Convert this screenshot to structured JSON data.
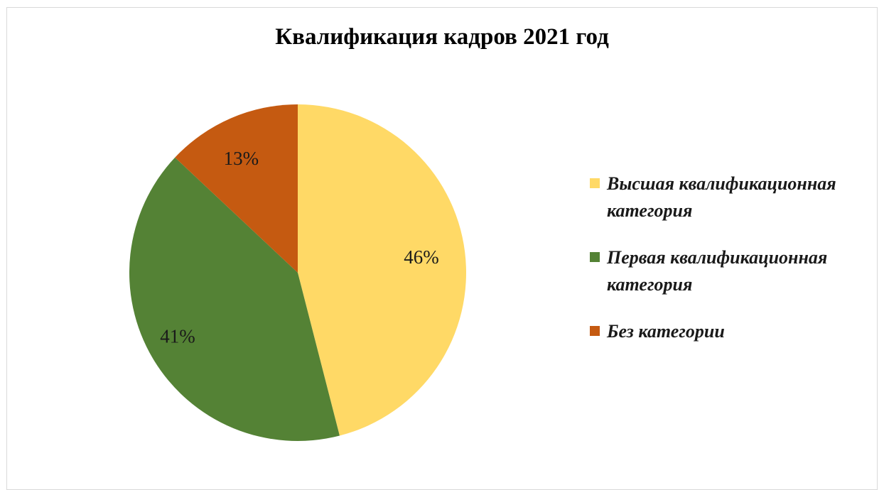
{
  "chart_data": {
    "type": "pie",
    "title": "Квалификация кадров 2021 год",
    "series": [
      {
        "name": "Высшая квалификационная категория",
        "value": 46,
        "label": "46%",
        "color": "#FFD966"
      },
      {
        "name": "Первая квалификационная категория",
        "value": 41,
        "label": "41%",
        "color": "#548235"
      },
      {
        "name": "Без категории",
        "value": 13,
        "label": "13%",
        "color": "#C55A11"
      }
    ],
    "start_angle": "12 o'clock",
    "direction": "clockwise",
    "legend_position": "right"
  }
}
